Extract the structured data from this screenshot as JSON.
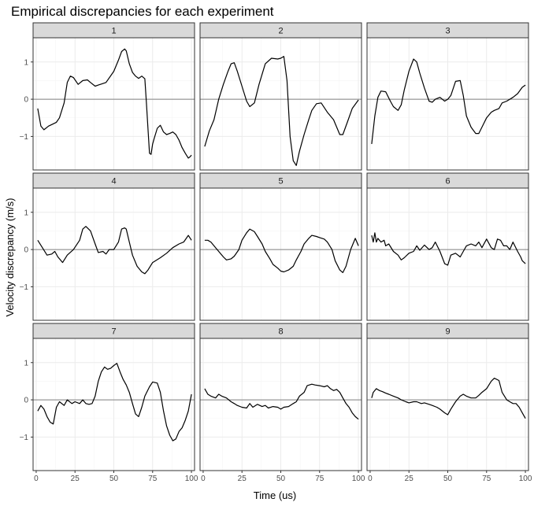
{
  "chart_data": {
    "type": "line",
    "title": "Empirical discrepancies for each experiment",
    "xlabel": "Time (us)",
    "ylabel": "Velocity discrepancy (m/s)",
    "xlim": [
      -2,
      102
    ],
    "ylim": [
      -1.9,
      1.65
    ],
    "xticks": [
      0,
      25,
      50,
      75,
      100
    ],
    "xtick_labels": [
      "0",
      "25",
      "50",
      "75",
      "100"
    ],
    "yticks": [
      -1,
      0,
      1
    ],
    "ytick_labels": [
      "−1",
      "0",
      "1"
    ],
    "grid": true,
    "reference_line_y": 0,
    "panels": [
      {
        "label": "1",
        "x": [
          1,
          3,
          5,
          8,
          10,
          13,
          15,
          18,
          20,
          22,
          24,
          27,
          30,
          33,
          35,
          38,
          40,
          45,
          50,
          53,
          55,
          57,
          58,
          60,
          62,
          64,
          66,
          68,
          70,
          71,
          72,
          73,
          74,
          75,
          76,
          78,
          80,
          82,
          84,
          86,
          88,
          90,
          92,
          94,
          96,
          98,
          99,
          100
        ],
        "y": [
          -0.25,
          -0.72,
          -0.82,
          -0.72,
          -0.68,
          -0.62,
          -0.5,
          -0.1,
          0.45,
          0.62,
          0.58,
          0.4,
          0.5,
          0.52,
          0.45,
          0.35,
          0.38,
          0.45,
          0.75,
          1.05,
          1.28,
          1.35,
          1.3,
          0.95,
          0.72,
          0.62,
          0.56,
          0.62,
          0.55,
          -0.1,
          -0.8,
          -1.45,
          -1.48,
          -1.2,
          -1.05,
          -0.78,
          -0.7,
          -0.88,
          -0.95,
          -0.92,
          -0.88,
          -0.95,
          -1.1,
          -1.3,
          -1.45,
          -1.58,
          -1.55,
          -1.5
        ]
      },
      {
        "label": "2",
        "x": [
          1,
          4,
          7,
          10,
          13,
          16,
          18,
          20,
          22,
          25,
          28,
          30,
          33,
          36,
          40,
          44,
          48,
          50,
          52,
          54,
          56,
          58,
          60,
          62,
          65,
          68,
          70,
          73,
          76,
          80,
          84,
          86,
          88,
          90,
          93,
          96,
          100
        ],
        "y": [
          -1.27,
          -0.85,
          -0.55,
          0.0,
          0.4,
          0.75,
          0.95,
          0.98,
          0.75,
          0.35,
          -0.05,
          -0.2,
          -0.1,
          0.4,
          0.95,
          1.1,
          1.08,
          1.1,
          1.15,
          0.5,
          -1.0,
          -1.65,
          -1.78,
          -1.4,
          -0.95,
          -0.55,
          -0.3,
          -0.12,
          -0.1,
          -0.35,
          -0.55,
          -0.75,
          -0.95,
          -0.95,
          -0.6,
          -0.25,
          -0.02
        ]
      },
      {
        "label": "3",
        "x": [
          1,
          3,
          5,
          7,
          10,
          13,
          15,
          18,
          20,
          22,
          25,
          28,
          30,
          32,
          35,
          38,
          40,
          42,
          45,
          48,
          50,
          52,
          55,
          58,
          60,
          62,
          65,
          68,
          70,
          72,
          75,
          78,
          80,
          83,
          85,
          88,
          92,
          95,
          98,
          100
        ],
        "y": [
          -1.2,
          -0.45,
          0.05,
          0.22,
          0.2,
          -0.05,
          -0.2,
          -0.3,
          -0.15,
          0.25,
          0.75,
          1.08,
          1.0,
          0.7,
          0.3,
          -0.05,
          -0.08,
          0.0,
          0.05,
          -0.05,
          0.0,
          0.1,
          0.48,
          0.5,
          0.1,
          -0.45,
          -0.75,
          -0.92,
          -0.92,
          -0.75,
          -0.5,
          -0.35,
          -0.3,
          -0.25,
          -0.1,
          -0.05,
          0.05,
          0.15,
          0.32,
          0.38
        ]
      },
      {
        "label": "4",
        "x": [
          1,
          4,
          7,
          10,
          12,
          14,
          17,
          20,
          24,
          28,
          30,
          32,
          35,
          38,
          40,
          43,
          45,
          47,
          50,
          53,
          55,
          57,
          58,
          60,
          62,
          65,
          68,
          70,
          72,
          75,
          80,
          84,
          88,
          92,
          95,
          98,
          100
        ],
        "y": [
          0.25,
          0.05,
          -0.15,
          -0.12,
          -0.05,
          -0.2,
          -0.35,
          -0.15,
          0.0,
          0.25,
          0.55,
          0.62,
          0.5,
          0.15,
          -0.08,
          -0.05,
          -0.12,
          0.0,
          0.0,
          0.2,
          0.55,
          0.58,
          0.55,
          0.2,
          -0.15,
          -0.45,
          -0.6,
          -0.65,
          -0.55,
          -0.35,
          -0.22,
          -0.1,
          0.05,
          0.15,
          0.2,
          0.38,
          0.25
        ]
      },
      {
        "label": "5",
        "x": [
          1,
          3,
          5,
          8,
          10,
          13,
          15,
          18,
          20,
          23,
          25,
          28,
          30,
          33,
          35,
          38,
          40,
          43,
          45,
          48,
          50,
          52,
          55,
          58,
          60,
          63,
          65,
          68,
          70,
          73,
          75,
          78,
          80,
          83,
          85,
          88,
          90,
          92,
          95,
          98,
          100
        ],
        "y": [
          0.25,
          0.25,
          0.2,
          0.05,
          -0.05,
          -0.2,
          -0.28,
          -0.25,
          -0.18,
          0.0,
          0.25,
          0.45,
          0.55,
          0.48,
          0.35,
          0.15,
          -0.05,
          -0.25,
          -0.4,
          -0.5,
          -0.58,
          -0.6,
          -0.55,
          -0.45,
          -0.28,
          -0.05,
          0.15,
          0.3,
          0.38,
          0.35,
          0.32,
          0.28,
          0.2,
          0.0,
          -0.3,
          -0.55,
          -0.62,
          -0.45,
          0.0,
          0.3,
          0.1
        ]
      },
      {
        "label": "6",
        "x": [
          1,
          2,
          3,
          4,
          5,
          7,
          9,
          10,
          12,
          15,
          18,
          20,
          22,
          25,
          28,
          30,
          32,
          35,
          38,
          40,
          42,
          45,
          48,
          50,
          52,
          55,
          58,
          60,
          62,
          65,
          68,
          70,
          72,
          75,
          78,
          80,
          82,
          84,
          86,
          88,
          90,
          92,
          95,
          97,
          98,
          100
        ],
        "y": [
          0.38,
          0.2,
          0.45,
          0.2,
          0.3,
          0.2,
          0.25,
          0.1,
          0.15,
          -0.05,
          -0.15,
          -0.28,
          -0.22,
          -0.1,
          -0.05,
          0.1,
          -0.02,
          0.12,
          0.0,
          0.05,
          0.2,
          -0.05,
          -0.38,
          -0.42,
          -0.15,
          -0.1,
          -0.2,
          -0.05,
          0.1,
          0.15,
          0.1,
          0.2,
          0.05,
          0.28,
          0.05,
          0.0,
          0.28,
          0.25,
          0.1,
          0.1,
          0.0,
          0.2,
          -0.05,
          -0.2,
          -0.3,
          -0.38
        ]
      },
      {
        "label": "7",
        "x": [
          1,
          3,
          5,
          7,
          9,
          11,
          13,
          15,
          18,
          20,
          23,
          25,
          28,
          30,
          32,
          34,
          36,
          38,
          40,
          42,
          44,
          46,
          48,
          50,
          52,
          54,
          56,
          58,
          60,
          62,
          64,
          66,
          68,
          70,
          73,
          75,
          78,
          80,
          82,
          84,
          86,
          88,
          90,
          92,
          94,
          96,
          98,
          100
        ],
        "y": [
          -0.3,
          -0.15,
          -0.25,
          -0.45,
          -0.6,
          -0.65,
          -0.2,
          -0.05,
          -0.15,
          0.0,
          -0.1,
          -0.05,
          -0.1,
          0.0,
          -0.1,
          -0.12,
          -0.1,
          0.1,
          0.5,
          0.75,
          0.88,
          0.82,
          0.85,
          0.92,
          0.98,
          0.75,
          0.55,
          0.4,
          0.2,
          -0.1,
          -0.38,
          -0.45,
          -0.2,
          0.1,
          0.35,
          0.48,
          0.45,
          0.2,
          -0.3,
          -0.7,
          -0.95,
          -1.1,
          -1.05,
          -0.85,
          -0.75,
          -0.55,
          -0.3,
          0.15
        ]
      },
      {
        "label": "8",
        "x": [
          1,
          3,
          5,
          8,
          10,
          12,
          15,
          18,
          20,
          22,
          25,
          28,
          30,
          32,
          35,
          38,
          40,
          42,
          45,
          48,
          50,
          52,
          55,
          58,
          60,
          62,
          65,
          67,
          70,
          72,
          75,
          78,
          80,
          82,
          84,
          86,
          88,
          90,
          92,
          94,
          96,
          98,
          100
        ],
        "y": [
          0.3,
          0.15,
          0.1,
          0.05,
          0.15,
          0.1,
          0.05,
          -0.05,
          -0.1,
          -0.15,
          -0.2,
          -0.22,
          -0.1,
          -0.2,
          -0.12,
          -0.18,
          -0.15,
          -0.22,
          -0.18,
          -0.2,
          -0.25,
          -0.2,
          -0.18,
          -0.1,
          -0.05,
          0.1,
          0.2,
          0.38,
          0.42,
          0.4,
          0.38,
          0.35,
          0.38,
          0.3,
          0.25,
          0.28,
          0.2,
          0.05,
          -0.1,
          -0.2,
          -0.35,
          -0.45,
          -0.52
        ]
      },
      {
        "label": "9",
        "x": [
          1,
          2,
          4,
          6,
          8,
          10,
          12,
          15,
          18,
          20,
          23,
          25,
          28,
          30,
          33,
          35,
          38,
          40,
          43,
          45,
          48,
          50,
          52,
          55,
          58,
          60,
          62,
          65,
          68,
          70,
          72,
          75,
          78,
          80,
          83,
          85,
          88,
          90,
          92,
          94,
          96,
          98,
          100
        ],
        "y": [
          0.05,
          0.2,
          0.3,
          0.25,
          0.22,
          0.18,
          0.15,
          0.1,
          0.05,
          0.0,
          -0.05,
          -0.08,
          -0.05,
          -0.05,
          -0.1,
          -0.08,
          -0.12,
          -0.15,
          -0.2,
          -0.25,
          -0.35,
          -0.4,
          -0.25,
          -0.05,
          0.1,
          0.15,
          0.1,
          0.05,
          0.05,
          0.12,
          0.2,
          0.3,
          0.5,
          0.58,
          0.52,
          0.2,
          0.0,
          -0.05,
          -0.1,
          -0.1,
          -0.2,
          -0.35,
          -0.5
        ]
      }
    ]
  },
  "colors": {
    "panel_background": "#ffffff",
    "panel_border": "#333333",
    "strip_background": "#d9d9d9",
    "grid_major": "#ebebeb",
    "grid_minor": "#f5f5f5",
    "zero_line": "#808080",
    "series_line": "#000000"
  }
}
